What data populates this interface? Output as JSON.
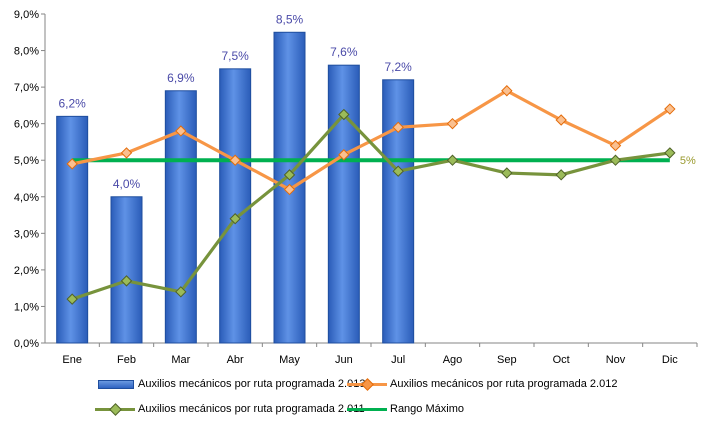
{
  "chart_data": {
    "type": "bar",
    "categories": [
      "Ene",
      "Feb",
      "Mar",
      "Abr",
      "May",
      "Jun",
      "Jul",
      "Ago",
      "Sep",
      "Oct",
      "Nov",
      "Dic"
    ],
    "ylim": [
      0,
      9
    ],
    "yticks": [
      "0,0%",
      "1,0%",
      "2,0%",
      "3,0%",
      "4,0%",
      "5,0%",
      "6,0%",
      "7,0%",
      "8,0%",
      "9,0%"
    ],
    "grid": false,
    "legend_position": "bottom",
    "series": [
      {
        "name": "Auxilios mecánicos por ruta programada 2.013",
        "type": "bar",
        "color": "#3366cc",
        "values": [
          6.2,
          4.0,
          6.9,
          7.5,
          8.5,
          7.6,
          7.2,
          null,
          null,
          null,
          null,
          null
        ],
        "labels": [
          "6,2%",
          "4,0%",
          "6,9%",
          "7,5%",
          "8,5%",
          "7,6%",
          "7,2%",
          "",
          "",
          "",
          "",
          ""
        ],
        "label_color": "#4a4aa8"
      },
      {
        "name": "Auxilios mecánicos por ruta programada 2.012",
        "type": "line",
        "color": "#f79646",
        "values": [
          4.9,
          5.2,
          5.8,
          5.0,
          4.2,
          5.15,
          5.9,
          6.0,
          6.9,
          6.1,
          5.4,
          6.4
        ]
      },
      {
        "name": "Auxilios mecánicos por ruta programada 2.011",
        "type": "line",
        "color": "#77933c",
        "values": [
          1.2,
          1.7,
          1.4,
          3.4,
          4.6,
          6.25,
          4.7,
          5.0,
          4.65,
          4.6,
          5.0,
          5.2
        ]
      },
      {
        "name": "Rango Máximo",
        "type": "line",
        "color": "#00b050",
        "values": [
          5,
          5,
          5,
          5,
          5,
          5,
          5,
          5,
          5,
          5,
          5,
          5
        ],
        "end_label": "5%",
        "end_label_color": "#9a9a2e"
      }
    ]
  }
}
